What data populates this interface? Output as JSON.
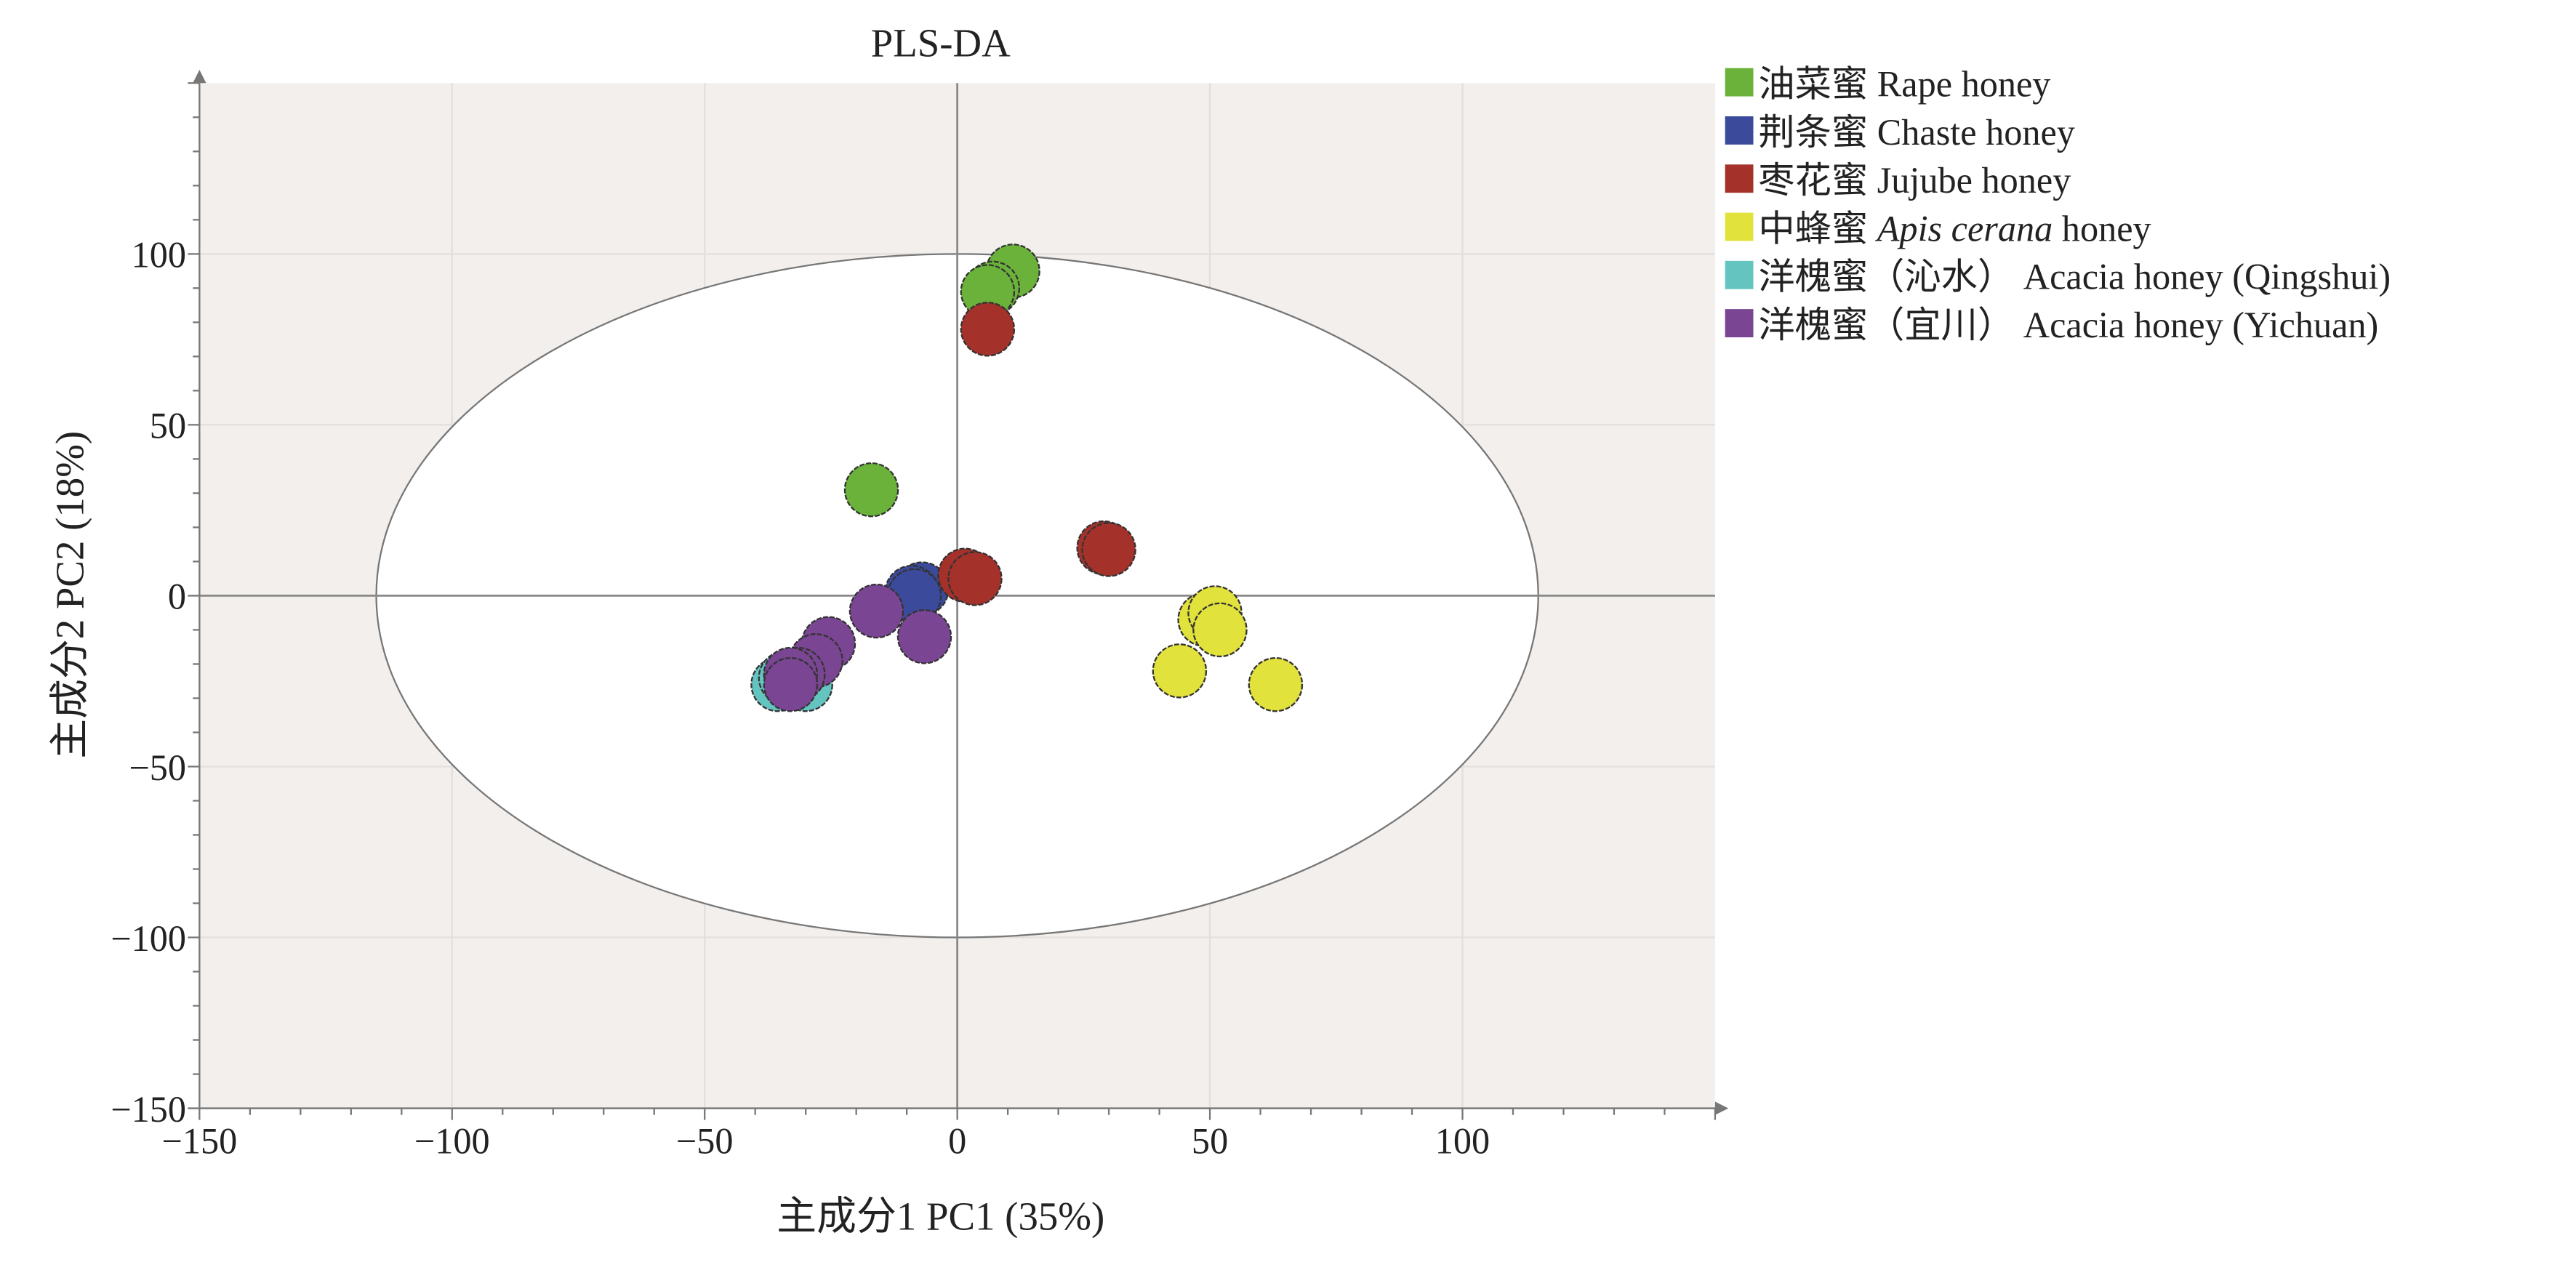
{
  "chart_data": {
    "type": "scatter",
    "title": "PLS-DA",
    "xlabel": "主成分1 PC1 (35%)",
    "ylabel": "主成分2 PC2 (18%)",
    "xlim": [
      -150,
      150
    ],
    "ylim": [
      -150,
      150
    ],
    "xticks": [
      -150,
      -100,
      -50,
      0,
      50,
      100
    ],
    "yticks": [
      -150,
      -100,
      -50,
      0,
      50,
      100
    ],
    "xtick_labels": [
      "−150",
      "−100",
      "−50",
      "0",
      "50",
      "100"
    ],
    "ytick_labels": [
      "−150",
      "−100",
      "−50",
      "0",
      "50",
      "100"
    ],
    "grid": true,
    "confidence_ellipse": {
      "x_radius": 115,
      "y_radius": 100
    },
    "legend_position": "right",
    "series": [
      {
        "name_cn": "油菜蜜",
        "name_en": "Rape honey",
        "name_en_italic": "",
        "color": "#6ab23a",
        "points": [
          [
            -17,
            31
          ],
          [
            11,
            95
          ],
          [
            7,
            90
          ],
          [
            6,
            89
          ]
        ]
      },
      {
        "name_cn": "荆条蜜",
        "name_en": "Chaste honey",
        "name_en_italic": "",
        "color": "#3b4a9a",
        "points": [
          [
            -7,
            2
          ],
          [
            -9,
            1
          ],
          [
            -8.5,
            0
          ]
        ]
      },
      {
        "name_cn": "枣花蜜",
        "name_en": "Jujube honey",
        "name_en_italic": "",
        "color": "#a4312a",
        "points": [
          [
            6,
            78
          ],
          [
            1.5,
            6
          ],
          [
            3.5,
            5
          ],
          [
            29,
            14
          ],
          [
            30,
            13.5
          ]
        ]
      },
      {
        "name_cn": "中蜂蜜",
        "name_en": " honey",
        "name_en_italic": "Apis cerana",
        "color": "#e2e23c",
        "points": [
          [
            49,
            -7
          ],
          [
            51,
            -5
          ],
          [
            52,
            -10
          ],
          [
            44,
            -22
          ],
          [
            63,
            -26
          ]
        ]
      },
      {
        "name_cn": "洋槐蜜（沁水）",
        "name_en": "Acacia honey (Qingshui)",
        "name_en_italic": "",
        "color": "#64c4c0",
        "points": [
          [
            -35.5,
            -26
          ],
          [
            -34,
            -24
          ],
          [
            -30,
            -26
          ]
        ]
      },
      {
        "name_cn": "洋槐蜜（宜川）",
        "name_en": "Acacia honey (Yichuan)",
        "name_en_italic": "",
        "color": "#7a4593",
        "points": [
          [
            -16,
            -4.5
          ],
          [
            -6.5,
            -12
          ],
          [
            -25.5,
            -14
          ],
          [
            -28,
            -19
          ],
          [
            -31.5,
            -23
          ],
          [
            -33,
            -23
          ],
          [
            -33,
            -26
          ]
        ]
      }
    ]
  }
}
